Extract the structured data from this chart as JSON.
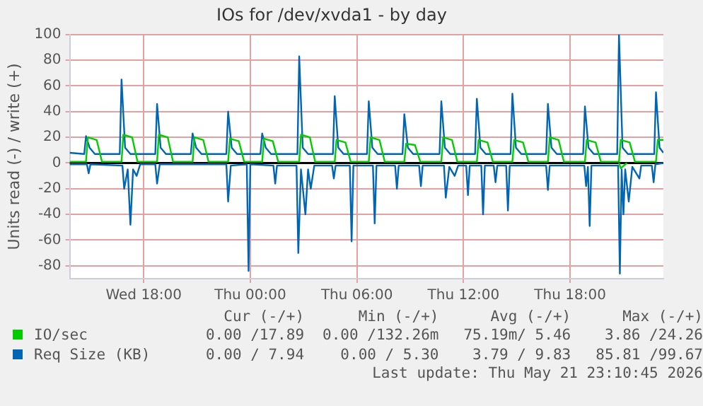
{
  "chart_data": {
    "type": "line",
    "title": "IOs for /dev/xvda1 - by day",
    "ylabel": "Units read (-) / write (+)",
    "xlim": [
      "2026-05-20T13:50",
      "2026-05-21T23:15"
    ],
    "xticks": [
      {
        "value": "2026-05-20T18:00",
        "label": "Wed 18:00"
      },
      {
        "value": "2026-05-21T00:00",
        "label": "Thu 00:00"
      },
      {
        "value": "2026-05-21T06:00",
        "label": "Thu 06:00"
      },
      {
        "value": "2026-05-21T12:00",
        "label": "Thu 12:00"
      },
      {
        "value": "2026-05-21T18:00",
        "label": "Thu 18:00"
      }
    ],
    "ylim": [
      -90,
      100
    ],
    "yticks": [
      -80,
      -60,
      -40,
      -20,
      0,
      20,
      40,
      60,
      80,
      100
    ],
    "grid": true,
    "legend": "bottom",
    "ref_lines": [
      {
        "axis": "y",
        "value": 0,
        "color": "#000000"
      }
    ],
    "series": [
      {
        "name": "IO/sec",
        "color": "#00cc00",
        "x": [
          "2026-05-20T13:50",
          "2026-05-20T14:45",
          "2026-05-20T14:51",
          "2026-05-20T15:21",
          "2026-05-20T15:39",
          "2026-05-20T16:45",
          "2026-05-20T16:51",
          "2026-05-20T17:21",
          "2026-05-20T17:39",
          "2026-05-20T18:45",
          "2026-05-20T18:51",
          "2026-05-20T19:21",
          "2026-05-20T19:39",
          "2026-05-20T20:45",
          "2026-05-20T20:51",
          "2026-05-20T21:21",
          "2026-05-20T21:39",
          "2026-05-20T22:45",
          "2026-05-20T22:51",
          "2026-05-20T23:21",
          "2026-05-20T23:39",
          "2026-05-21T00:40",
          "2026-05-21T00:46",
          "2026-05-21T01:16",
          "2026-05-21T01:34",
          "2026-05-21T02:45",
          "2026-05-21T02:51",
          "2026-05-21T03:21",
          "2026-05-21T03:39",
          "2026-05-21T04:45",
          "2026-05-21T04:51",
          "2026-05-21T05:21",
          "2026-05-21T05:39",
          "2026-05-21T06:40",
          "2026-05-21T06:46",
          "2026-05-21T07:16",
          "2026-05-21T07:34",
          "2026-05-21T08:40",
          "2026-05-21T08:46",
          "2026-05-21T09:16",
          "2026-05-21T09:34",
          "2026-05-21T10:45",
          "2026-05-21T10:51",
          "2026-05-21T11:21",
          "2026-05-21T11:39",
          "2026-05-21T12:45",
          "2026-05-21T12:51",
          "2026-05-21T13:21",
          "2026-05-21T13:39",
          "2026-05-21T14:45",
          "2026-05-21T14:51",
          "2026-05-21T15:21",
          "2026-05-21T15:39",
          "2026-05-21T16:45",
          "2026-05-21T16:51",
          "2026-05-21T17:21",
          "2026-05-21T17:39",
          "2026-05-21T18:50",
          "2026-05-21T18:56",
          "2026-05-21T19:26",
          "2026-05-21T19:44",
          "2026-05-21T20:45",
          "2026-05-21T20:51",
          "2026-05-21T21:21",
          "2026-05-21T21:39",
          "2026-05-21T22:50",
          "2026-05-21T22:56",
          "2026-05-21T23:15"
        ],
        "values": [
          1,
          1,
          20,
          18,
          1,
          1,
          22,
          20,
          1,
          1,
          22,
          20,
          1,
          1,
          20,
          18,
          1,
          1,
          19,
          17,
          1,
          1,
          19,
          17,
          1,
          1,
          22,
          20,
          1,
          1,
          18,
          16,
          1,
          1,
          20,
          18,
          1,
          1,
          15,
          14,
          1,
          1,
          20,
          18,
          1,
          1,
          18,
          16,
          1,
          1,
          18,
          16,
          1,
          1,
          20,
          18,
          1,
          1,
          18,
          16,
          1,
          1,
          18,
          16,
          1,
          1,
          18,
          18
        ]
      },
      {
        "color": "#00cc00",
        "x": [
          "2026-05-21T20:45",
          "2026-05-21T20:51",
          "2026-05-21T21:12"
        ],
        "values": [
          0,
          -4,
          0
        ]
      },
      {
        "name": "Req Size (KB)",
        "color": "#0066b3",
        "x": [
          "2026-05-20T13:50",
          "2026-05-20T14:39",
          "2026-05-20T14:45",
          "2026-05-20T14:57",
          "2026-05-20T15:15",
          "2026-05-20T16:39",
          "2026-05-20T16:45",
          "2026-05-20T16:57",
          "2026-05-20T17:15",
          "2026-05-20T18:39",
          "2026-05-20T18:45",
          "2026-05-20T18:57",
          "2026-05-20T19:15",
          "2026-05-20T20:39",
          "2026-05-20T20:45",
          "2026-05-20T20:57",
          "2026-05-20T21:15",
          "2026-05-20T22:39",
          "2026-05-20T22:45",
          "2026-05-20T22:57",
          "2026-05-20T23:15",
          "2026-05-21T00:34",
          "2026-05-21T00:40",
          "2026-05-21T00:52",
          "2026-05-21T01:10",
          "2026-05-21T02:39",
          "2026-05-21T02:45",
          "2026-05-21T02:57",
          "2026-05-21T03:15",
          "2026-05-21T04:39",
          "2026-05-21T04:45",
          "2026-05-21T04:57",
          "2026-05-21T05:15",
          "2026-05-21T06:34",
          "2026-05-21T06:40",
          "2026-05-21T06:52",
          "2026-05-21T07:10",
          "2026-05-21T08:34",
          "2026-05-21T08:40",
          "2026-05-21T08:52",
          "2026-05-21T09:10",
          "2026-05-21T10:39",
          "2026-05-21T10:45",
          "2026-05-21T10:57",
          "2026-05-21T11:15",
          "2026-05-21T12:39",
          "2026-05-21T12:45",
          "2026-05-21T12:57",
          "2026-05-21T13:15",
          "2026-05-21T14:39",
          "2026-05-21T14:45",
          "2026-05-21T14:57",
          "2026-05-21T15:15",
          "2026-05-21T16:39",
          "2026-05-21T16:45",
          "2026-05-21T16:57",
          "2026-05-21T17:15",
          "2026-05-21T18:44",
          "2026-05-21T18:50",
          "2026-05-21T19:02",
          "2026-05-21T19:20",
          "2026-05-21T20:39",
          "2026-05-21T20:45",
          "2026-05-21T20:57",
          "2026-05-21T21:15",
          "2026-05-21T22:44",
          "2026-05-21T22:50",
          "2026-05-21T23:02",
          "2026-05-21T23:15"
        ],
        "values": [
          8,
          7,
          21,
          12,
          7,
          7,
          65,
          12,
          7,
          7,
          46,
          12,
          7,
          7,
          23,
          12,
          7,
          7,
          40,
          12,
          7,
          7,
          23,
          12,
          7,
          7,
          83,
          12,
          7,
          7,
          52,
          12,
          7,
          7,
          48,
          12,
          7,
          7,
          38,
          12,
          7,
          7,
          48,
          12,
          7,
          7,
          50,
          12,
          7,
          7,
          54,
          12,
          7,
          7,
          46,
          12,
          7,
          7,
          44,
          12,
          7,
          7,
          100,
          12,
          7,
          7,
          55,
          12,
          8
        ]
      },
      {
        "color": "#0066b3",
        "x": [
          "2026-05-20T13:50",
          "2026-05-20T14:48",
          "2026-05-20T14:54",
          "2026-05-20T15:00",
          "2026-05-20T16:48",
          "2026-05-20T16:54",
          "2026-05-20T17:06",
          "2026-05-20T17:15",
          "2026-05-20T17:24",
          "2026-05-20T17:36",
          "2026-05-20T17:48",
          "2026-05-20T18:39",
          "2026-05-20T18:45",
          "2026-05-20T18:54",
          "2026-05-20T22:39",
          "2026-05-20T22:45",
          "2026-05-20T22:54",
          "2026-05-20T23:48",
          "2026-05-20T23:54",
          "2026-05-21T00:00",
          "2026-05-21T01:18",
          "2026-05-21T01:24",
          "2026-05-21T01:30",
          "2026-05-21T02:36",
          "2026-05-21T02:42",
          "2026-05-21T02:51",
          "2026-05-21T03:06",
          "2026-05-21T03:15",
          "2026-05-21T03:24",
          "2026-05-21T03:36",
          "2026-05-21T04:36",
          "2026-05-21T04:42",
          "2026-05-21T04:48",
          "2026-05-21T05:36",
          "2026-05-21T05:42",
          "2026-05-21T05:48",
          "2026-05-21T06:54",
          "2026-05-21T07:00",
          "2026-05-21T07:06",
          "2026-05-21T08:09",
          "2026-05-21T08:15",
          "2026-05-21T08:21",
          "2026-05-21T09:30",
          "2026-05-21T09:36",
          "2026-05-21T09:42",
          "2026-05-21T10:54",
          "2026-05-21T11:00",
          "2026-05-21T11:12",
          "2026-05-21T11:30",
          "2026-05-21T11:42",
          "2026-05-21T12:09",
          "2026-05-21T12:15",
          "2026-05-21T12:21",
          "2026-05-21T13:00",
          "2026-05-21T13:06",
          "2026-05-21T13:12",
          "2026-05-21T13:42",
          "2026-05-21T13:48",
          "2026-05-21T13:54",
          "2026-05-21T14:24",
          "2026-05-21T14:30",
          "2026-05-21T14:36",
          "2026-05-21T16:39",
          "2026-05-21T16:45",
          "2026-05-21T16:51",
          "2026-05-21T18:48",
          "2026-05-21T18:54",
          "2026-05-21T19:00",
          "2026-05-21T19:06",
          "2026-05-21T19:12",
          "2026-05-21T20:42",
          "2026-05-21T20:48",
          "2026-05-21T20:54",
          "2026-05-21T21:00",
          "2026-05-21T21:06",
          "2026-05-21T21:18",
          "2026-05-21T21:30",
          "2026-05-21T21:54",
          "2026-05-21T22:00",
          "2026-05-21T22:36",
          "2026-05-21T22:42",
          "2026-05-21T22:48",
          "2026-05-21T23:15"
        ],
        "values": [
          -1,
          -1,
          -8,
          -1,
          -2,
          -20,
          -5,
          -48,
          -5,
          -10,
          -1,
          -1,
          -16,
          -1,
          -1,
          -30,
          -2,
          -1,
          -84,
          -1,
          -2,
          -16,
          -2,
          -2,
          -70,
          -5,
          -40,
          -5,
          -20,
          -2,
          -2,
          -12,
          -2,
          -2,
          -61,
          -2,
          -2,
          -47,
          -2,
          -2,
          -20,
          -2,
          -2,
          -18,
          -2,
          -2,
          -27,
          -3,
          -10,
          -2,
          -2,
          -25,
          -2,
          -2,
          -40,
          -2,
          -2,
          -15,
          -2,
          -2,
          -37,
          -2,
          -2,
          -21,
          -2,
          -2,
          -18,
          -3,
          -49,
          -2,
          -2,
          -86,
          -5,
          -40,
          -5,
          -30,
          -3,
          -12,
          -2,
          -2,
          -15,
          -1,
          0
        ]
      }
    ],
    "annotations": [
      "Cur (-/+)",
      "Min (-/+)",
      "Avg (-/+)",
      "Max (-/+)",
      "0.00 /17.89",
      "0.00 /132.26m",
      "75.19m/ 5.46",
      "3.86 /24.26",
      "0.00 / 7.94",
      "0.00 / 5.30",
      "3.79 / 9.83",
      "85.81 /99.67",
      "Last update: Thu May 21 23:10:45 2026"
    ]
  }
}
